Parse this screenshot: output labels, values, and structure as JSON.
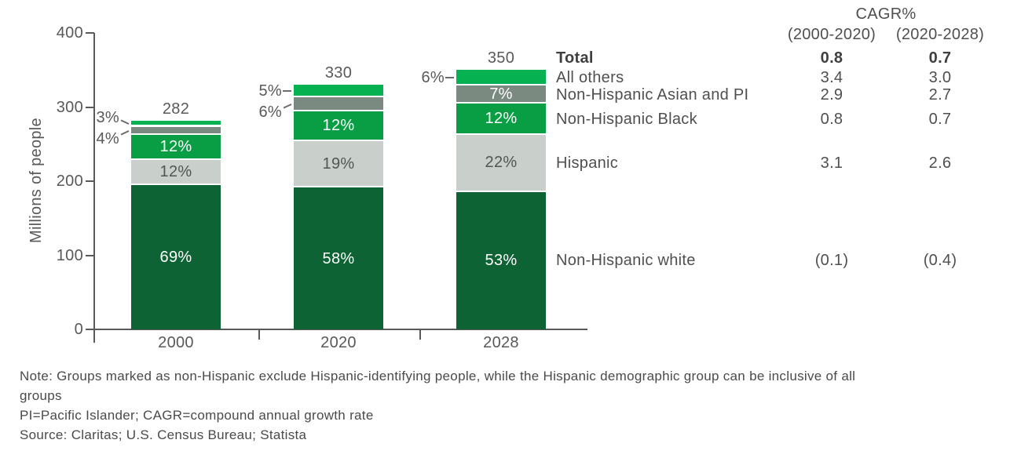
{
  "chart_data": {
    "type": "stacked-bar",
    "title": "",
    "ylabel": "Millions of people",
    "ylim": [
      0,
      400
    ],
    "yticks": [
      0,
      100,
      200,
      300,
      400
    ],
    "categories": [
      "2000",
      "2020",
      "2028"
    ],
    "totals": [
      282,
      330,
      350
    ],
    "series": [
      {
        "name": "Non-Hispanic white",
        "color": "#0d6334",
        "text_color": "#ffffff",
        "pct": [
          69,
          58,
          53
        ]
      },
      {
        "name": "Hispanic",
        "color": "#c9cfcb",
        "text_color": "#4e5853",
        "pct": [
          12,
          19,
          22
        ]
      },
      {
        "name": "Non-Hispanic Black",
        "color": "#0a9e44",
        "text_color": "#ffffff",
        "pct": [
          12,
          12,
          12
        ]
      },
      {
        "name": "Non-Hispanic Asian and PI",
        "color": "#7b8a81",
        "text_color": "#ffffff",
        "pct": [
          4,
          6,
          7
        ]
      },
      {
        "name": "All others",
        "color": "#05b150",
        "text_color": "#ffffff",
        "pct": [
          3,
          5,
          6
        ]
      }
    ],
    "outside_labels": [
      {
        "bar": 0,
        "series": 4,
        "text": "3%",
        "leader": "down"
      },
      {
        "bar": 0,
        "series": 3,
        "text": "4%",
        "leader": "up"
      },
      {
        "bar": 1,
        "series": 4,
        "text": "5%",
        "leader": "flat"
      },
      {
        "bar": 1,
        "series": 3,
        "text": "6%",
        "leader": "up"
      },
      {
        "bar": 2,
        "series": 4,
        "text": "6%",
        "leader": "flat"
      }
    ],
    "grid": false,
    "legend_position": "right-table"
  },
  "cagr_table": {
    "title": "CAGR%",
    "columns": [
      "(2000-2020)",
      "(2020-2028)"
    ],
    "rows": [
      {
        "label": "Total",
        "values": [
          "0.8",
          "0.7"
        ],
        "bold": true
      },
      {
        "label": "All others",
        "values": [
          "3.4",
          "3.0"
        ],
        "bold": false
      },
      {
        "label": "Non-Hispanic Asian and PI",
        "values": [
          "2.9",
          "2.7"
        ],
        "bold": false
      },
      {
        "label": "Non-Hispanic Black",
        "values": [
          "0.8",
          "0.7"
        ],
        "bold": false
      },
      {
        "label": "Hispanic",
        "values": [
          "3.1",
          "2.6"
        ],
        "bold": false
      },
      {
        "label": "Non-Hispanic white",
        "values": [
          "(0.1)",
          "(0.4)"
        ],
        "bold": false
      }
    ]
  },
  "footnotes": {
    "lines": [
      "Note: Groups marked as non-Hispanic exclude Hispanic-identifying people, while the Hispanic demographic group can be inclusive of all",
      "groups",
      "PI=Pacific Islander; CAGR=compound annual growth rate",
      "Source: Claritas; U.S. Census Bureau; Statista"
    ]
  },
  "colors": {
    "axis": "#595959",
    "leader": "#6b6b6b",
    "body_text": "#4a4a4a"
  }
}
